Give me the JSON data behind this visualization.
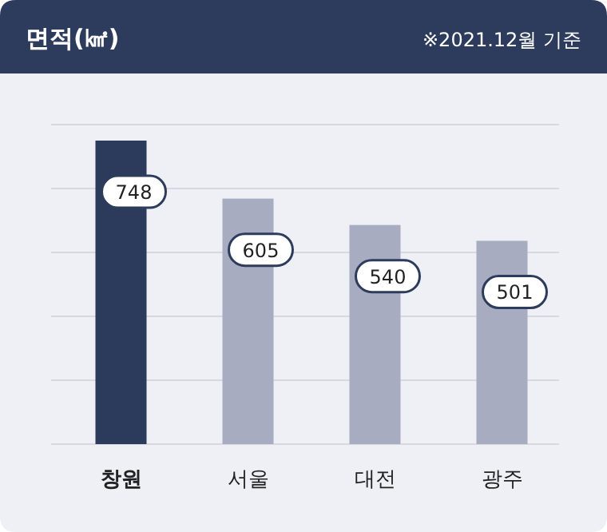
{
  "chart_data": {
    "type": "bar",
    "title": "면적(㎢)",
    "subtitle": "※2021.12월 기준",
    "categories": [
      "창원",
      "서울",
      "대전",
      "광주"
    ],
    "values": [
      748,
      605,
      540,
      501
    ],
    "colors": [
      "#2c3b5b",
      "#a7acc0",
      "#a7acc0",
      "#a7acc0"
    ],
    "data_labels": true,
    "grid": "y"
  }
}
